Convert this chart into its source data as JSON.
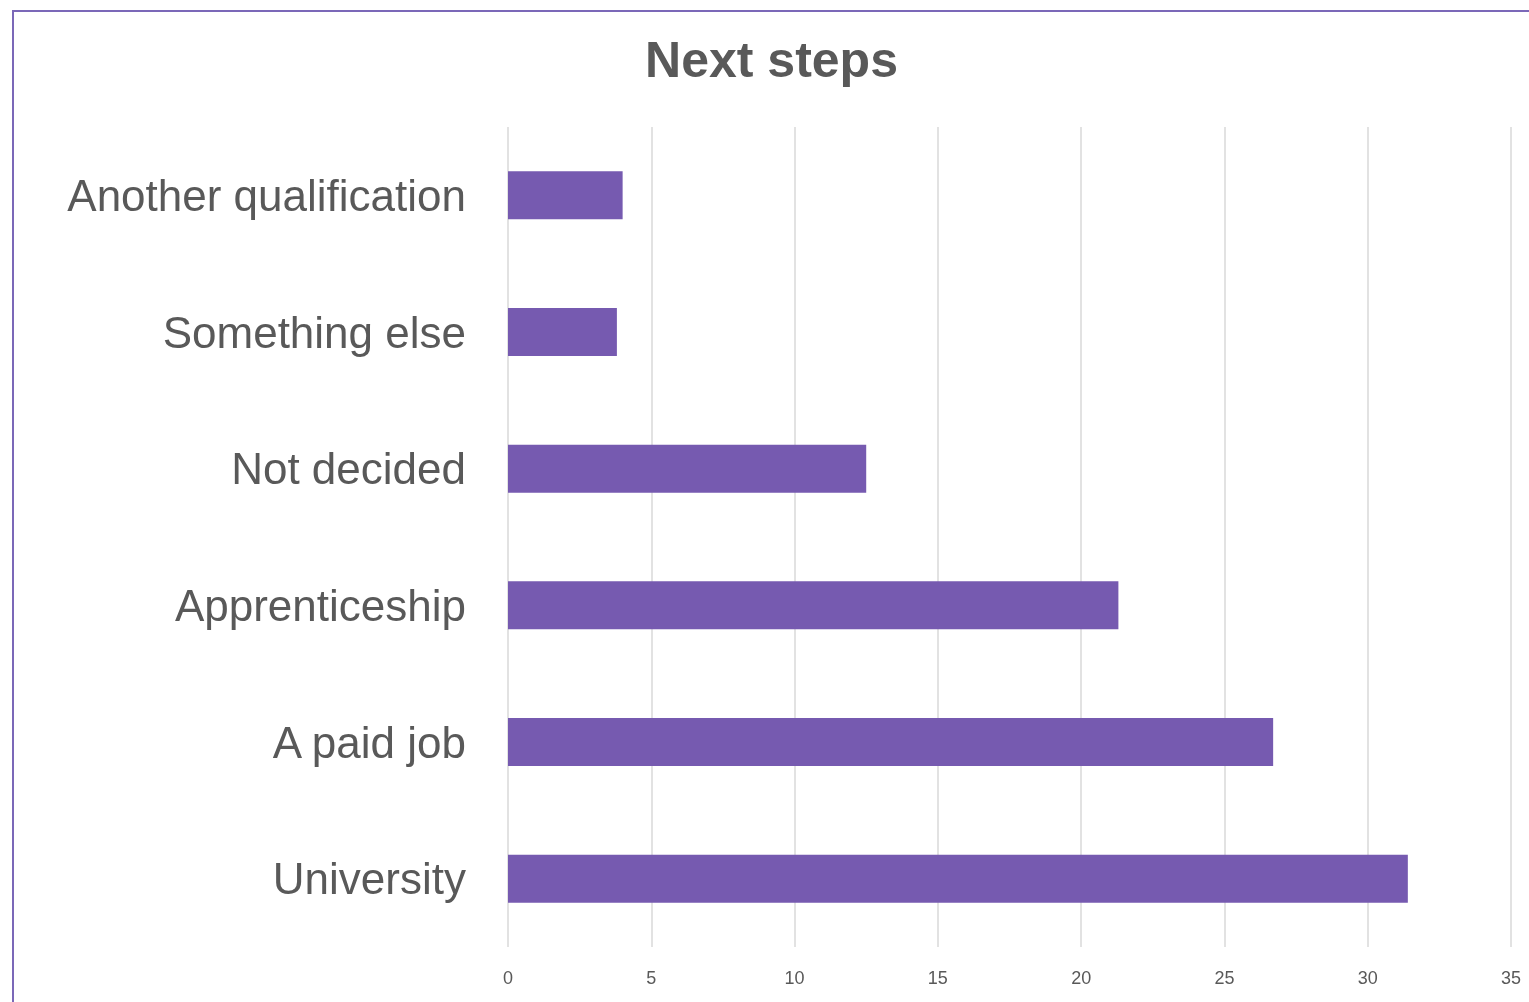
{
  "chart_data": {
    "type": "bar",
    "orientation": "horizontal",
    "title": "Next steps",
    "categories": [
      "Another qualification",
      "Something else",
      "Not decided",
      "Apprenticeship",
      "A paid job",
      "University"
    ],
    "values": [
      4.0,
      3.8,
      12.5,
      21.3,
      26.7,
      31.4
    ],
    "color": "#765ab0",
    "xlim": [
      0,
      35
    ],
    "xticks": [
      0,
      5,
      10,
      15,
      20,
      25,
      30,
      35
    ],
    "grid": "x"
  }
}
